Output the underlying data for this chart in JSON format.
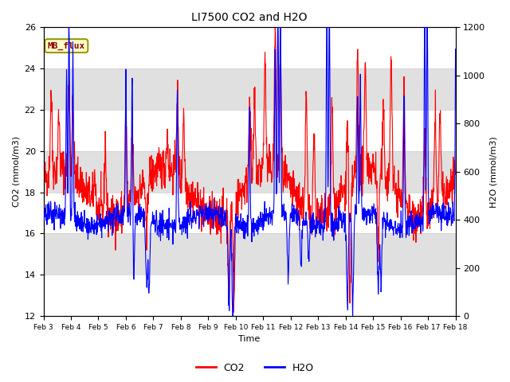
{
  "title": "LI7500 CO2 and H2O",
  "ylabel_left": "CO2 (mmol/m3)",
  "ylabel_right": "H2O (mmol/m3)",
  "xlabel": "Time",
  "ylim_left": [
    12,
    26
  ],
  "ylim_right": [
    0,
    1200
  ],
  "yticks_left": [
    12,
    14,
    16,
    18,
    20,
    22,
    24,
    26
  ],
  "yticks_right": [
    0,
    200,
    400,
    600,
    800,
    1000,
    1200
  ],
  "xtick_labels": [
    "Feb 3",
    "Feb 4",
    "Feb 5",
    "Feb 6",
    "Feb 7",
    "Feb 8",
    "Feb 9",
    "Feb 10",
    "Feb 11",
    "Feb 12",
    "Feb 13",
    "Feb 14",
    "Feb 15",
    "Feb 16",
    "Feb 17",
    "Feb 18"
  ],
  "mb_flux_label": "MB_flux",
  "co2_color": "#FF0000",
  "h2o_color": "#0000FF",
  "background_color": "#ffffff",
  "band_color": "#e0e0e0",
  "legend_labels": [
    "CO2",
    "H2O"
  ],
  "n_points": 1500,
  "seed": 42
}
